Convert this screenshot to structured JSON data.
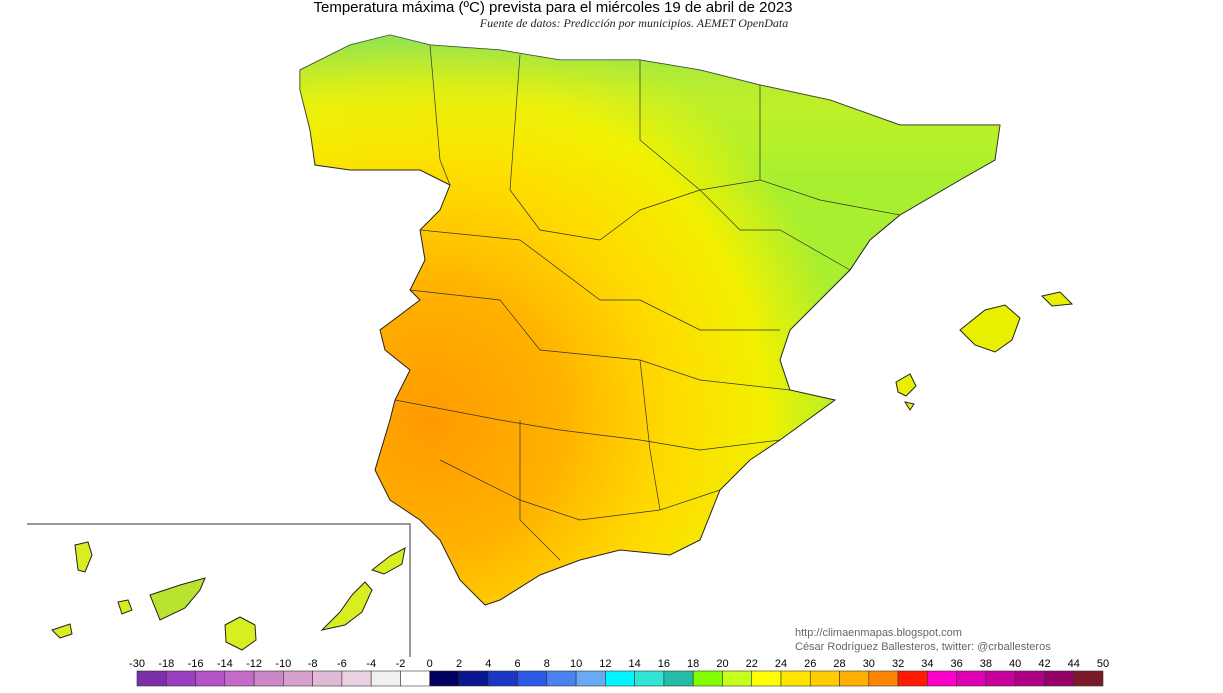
{
  "header": {
    "title": "Temperatura máxima (ºC) prevista para el miércoles 19 de abril de 2023",
    "source": "Fuente de datos: Predicción por municipios. AEMET OpenData"
  },
  "credits": {
    "url": "http://climaenmapas.blogspot.com",
    "author": "César Rodríguez Ballesteros, twitter: @crballesteros"
  },
  "legend": {
    "ticks": [
      -30,
      -18,
      -16,
      -14,
      -12,
      -10,
      -8,
      -6,
      -4,
      -2,
      0,
      2,
      4,
      6,
      8,
      10,
      12,
      14,
      16,
      18,
      20,
      22,
      24,
      26,
      28,
      30,
      32,
      34,
      36,
      38,
      40,
      42,
      44,
      50
    ],
    "colors": [
      "#7b2fa8",
      "#9a3fbf",
      "#b452c8",
      "#c46bc9",
      "#cd86c6",
      "#d7a0cd",
      "#e0bad6",
      "#e9d3e2",
      "#f0f0f0",
      "#ffffff",
      "#00005e",
      "#08168f",
      "#1a36c4",
      "#2b58e4",
      "#4a82ef",
      "#68aaf4",
      "#00f6ff",
      "#30e4d8",
      "#24bca8",
      "#7fff00",
      "#c6ff1a",
      "#ffff00",
      "#ffe400",
      "#ffcc00",
      "#ffb000",
      "#ff8400",
      "#ff1a00",
      "#ff00cc",
      "#e000b4",
      "#c8009c",
      "#ae0084",
      "#940066",
      "#7a1a28"
    ]
  }
}
